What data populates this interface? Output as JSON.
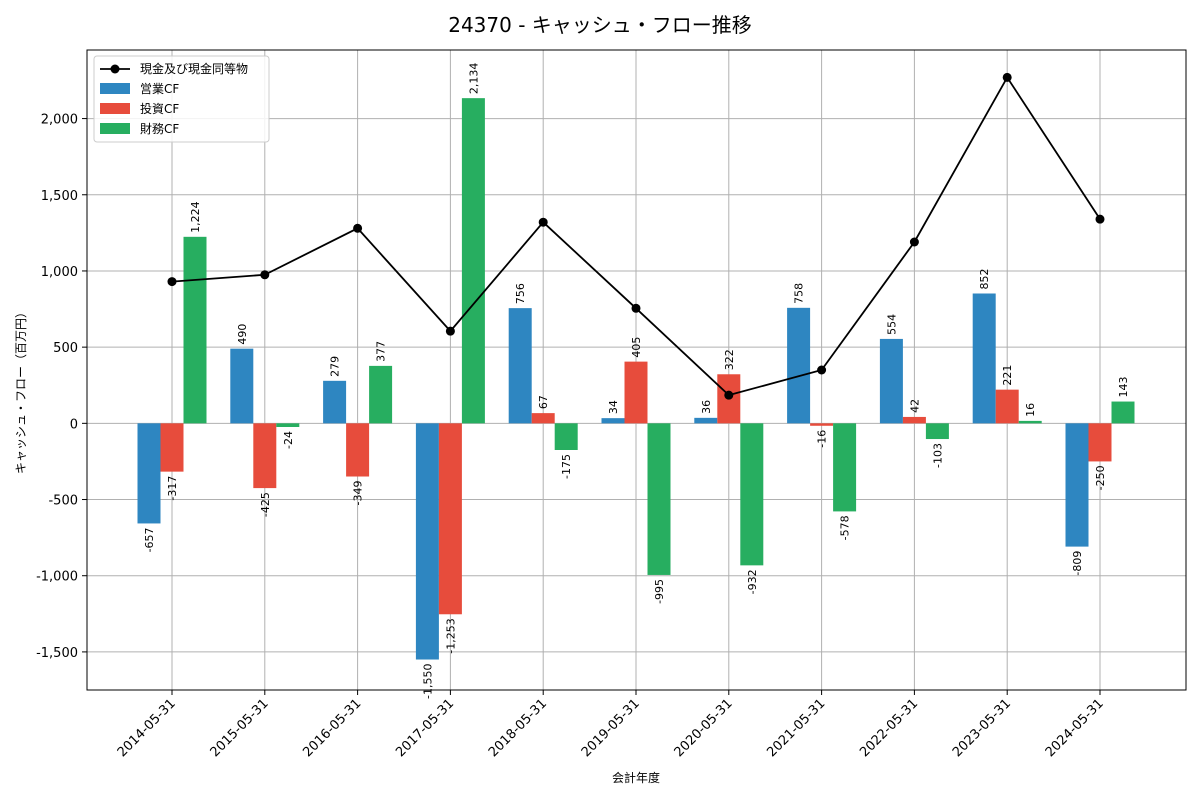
{
  "chart_data": {
    "type": "bar",
    "title": "24370 - キャッシュ・フロー推移",
    "xlabel": "会計年度",
    "ylabel": "キャッシュ・フロー（百万円）",
    "ylim": [
      -1750,
      2450
    ],
    "yticks": [
      -1500,
      -1000,
      -500,
      0,
      500,
      1000,
      1500,
      2000
    ],
    "ytick_labels": [
      "-1,500",
      "-1,000",
      "-500",
      "0",
      "500",
      "1,000",
      "1,500",
      "2,000"
    ],
    "grid": true,
    "legend_position": "top-left",
    "categories": [
      "2014-05-31",
      "2015-05-31",
      "2016-05-31",
      "2017-05-31",
      "2018-05-31",
      "2019-05-31",
      "2020-05-31",
      "2021-05-31",
      "2022-05-31",
      "2023-05-31",
      "2024-05-31"
    ],
    "series": [
      {
        "name": "営業CF",
        "type": "bar",
        "color": "#2e86c1",
        "values": [
          -657,
          490,
          279,
          -1550,
          756,
          34,
          36,
          758,
          554,
          852,
          -809
        ],
        "labels": [
          "-657",
          "490",
          "279",
          "-1,550",
          "756",
          "34",
          "36",
          "758",
          "554",
          "852",
          "-809"
        ]
      },
      {
        "name": "投資CF",
        "type": "bar",
        "color": "#e74c3c",
        "values": [
          -317,
          -425,
          -349,
          -1253,
          67,
          405,
          322,
          -16,
          42,
          221,
          -250
        ],
        "labels": [
          "-317",
          "-425",
          "-349",
          "-1,253",
          "67",
          "405",
          "322",
          "-16",
          "42",
          "221",
          "-250"
        ]
      },
      {
        "name": "財務CF",
        "type": "bar",
        "color": "#27ae60",
        "values": [
          1224,
          -24,
          377,
          2134,
          -175,
          -995,
          -932,
          -578,
          -103,
          16,
          143
        ],
        "labels": [
          "1,224",
          "-24",
          "377",
          "2,134",
          "-175",
          "-995",
          "-932",
          "-578",
          "-103",
          "16",
          "143"
        ]
      },
      {
        "name": "現金及び現金同等物",
        "type": "line",
        "color": "#000000",
        "values": [
          930,
          975,
          1280,
          605,
          1320,
          755,
          185,
          350,
          1190,
          2270,
          1340
        ]
      }
    ]
  }
}
